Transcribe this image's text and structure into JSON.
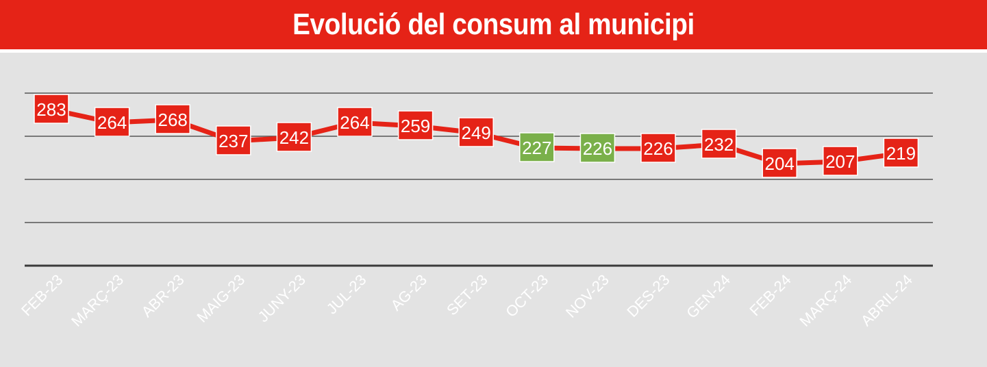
{
  "header": {
    "title": "Evolució del consum al municipi"
  },
  "colors": {
    "header_bg": "#e52317",
    "background": "#e3e3e3",
    "line": "#e52317",
    "label_default": "#e52317",
    "label_highlight": "#7ab04a",
    "gridline": "#555555",
    "text": "#ffffff"
  },
  "chart_data": {
    "type": "line",
    "categories": [
      "FEB-23",
      "MARÇ-23",
      "ABR-23",
      "MAIG-23",
      "JUNY-23",
      "JUL-23",
      "AG-23",
      "SET-23",
      "OCT-23",
      "NOV-23",
      "DES-23",
      "GEN-24",
      "FEB-24",
      "MARÇ-24",
      "ABRIL-24"
    ],
    "values": [
      283,
      264,
      268,
      237,
      242,
      264,
      259,
      249,
      227,
      226,
      226,
      232,
      204,
      207,
      219
    ],
    "highlighted": [
      "OCT-23",
      "NOV-23"
    ],
    "title": "Evolució del consum al municipi",
    "xlabel": "",
    "ylabel": "",
    "y_axis_labels_shown": false,
    "grid": true,
    "legend": "none"
  }
}
